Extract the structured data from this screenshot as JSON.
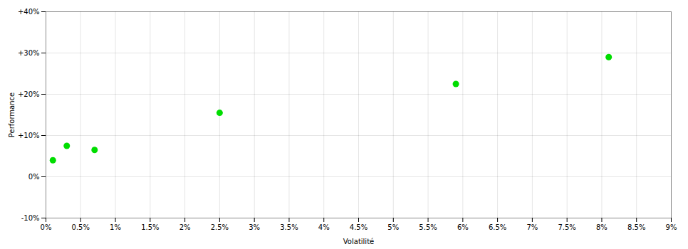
{
  "chart_data": {
    "type": "scatter",
    "x": [
      0.001,
      0.003,
      0.007,
      0.025,
      0.059,
      0.081
    ],
    "values": [
      0.04,
      0.075,
      0.065,
      0.155,
      0.225,
      0.29
    ],
    "color": "#00dd00",
    "marker": "circle",
    "xlabel": "Volatilité",
    "ylabel": "Performance",
    "xlim": [
      0.0,
      0.09
    ],
    "ylim": [
      -0.1,
      0.4
    ],
    "xticks": [
      {
        "value": 0.0,
        "label": "0%"
      },
      {
        "value": 0.005,
        "label": "0.5%"
      },
      {
        "value": 0.01,
        "label": "1%"
      },
      {
        "value": 0.015,
        "label": "1.5%"
      },
      {
        "value": 0.02,
        "label": "2%"
      },
      {
        "value": 0.025,
        "label": "2.5%"
      },
      {
        "value": 0.03,
        "label": "3%"
      },
      {
        "value": 0.035,
        "label": "3.5%"
      },
      {
        "value": 0.04,
        "label": "4%"
      },
      {
        "value": 0.045,
        "label": "4.5%"
      },
      {
        "value": 0.05,
        "label": "5%"
      },
      {
        "value": 0.055,
        "label": "5.5%"
      },
      {
        "value": 0.06,
        "label": "6%"
      },
      {
        "value": 0.065,
        "label": "6.5%"
      },
      {
        "value": 0.07,
        "label": "7%"
      },
      {
        "value": 0.075,
        "label": "7.5%"
      },
      {
        "value": 0.08,
        "label": "8%"
      },
      {
        "value": 0.085,
        "label": "8.5%"
      },
      {
        "value": 0.09,
        "label": "9%"
      }
    ],
    "yticks": [
      {
        "value": -0.1,
        "label": "-10%"
      },
      {
        "value": 0.0,
        "label": "0%"
      },
      {
        "value": 0.1,
        "label": "+10%"
      },
      {
        "value": 0.2,
        "label": "+20%"
      },
      {
        "value": 0.3,
        "label": "+30%"
      },
      {
        "value": 0.4,
        "label": "+40%"
      }
    ],
    "grid": true
  }
}
